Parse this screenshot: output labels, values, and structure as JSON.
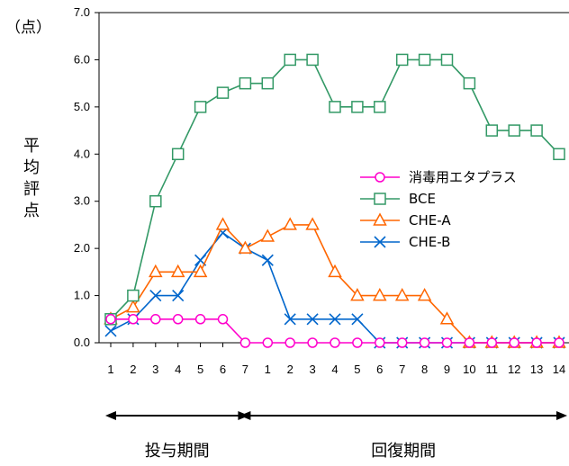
{
  "chart_data": {
    "type": "line",
    "y_unit": "（点）",
    "ylabel": "平均評点",
    "ylim": [
      0,
      7
    ],
    "y_ticks": [
      "0.0",
      "1.0",
      "2.0",
      "3.0",
      "4.0",
      "5.0",
      "6.0",
      "7.0"
    ],
    "categories": [
      "1",
      "2",
      "3",
      "4",
      "5",
      "6",
      "7",
      "1",
      "2",
      "3",
      "4",
      "5",
      "6",
      "7",
      "8",
      "9",
      "10",
      "11",
      "12",
      "13",
      "14"
    ],
    "grid": false,
    "legend_position": "right-middle",
    "series": [
      {
        "name": "消毒用エタプラス",
        "color": "#ff00cc",
        "marker": "circle",
        "values": [
          0.5,
          0.5,
          0.5,
          0.5,
          0.5,
          0.5,
          0,
          0,
          0,
          0,
          0,
          0,
          0,
          0,
          0,
          0,
          0,
          0,
          0,
          0,
          0
        ]
      },
      {
        "name": "BCE",
        "color": "#339966",
        "marker": "square",
        "values": [
          0.5,
          1,
          3,
          4,
          5,
          5.3,
          5.5,
          5.5,
          6,
          6,
          5,
          5,
          5,
          6,
          6,
          6,
          5.5,
          4.5,
          4.5,
          4.5,
          4
        ]
      },
      {
        "name": "CHE-A",
        "color": "#ff6600",
        "marker": "triangle",
        "values": [
          0.5,
          0.75,
          1.5,
          1.5,
          1.5,
          2.5,
          2,
          2.25,
          2.5,
          2.5,
          1.5,
          1,
          1,
          1,
          1,
          0.5,
          0,
          0,
          0,
          0,
          0
        ]
      },
      {
        "name": "CHE-B",
        "color": "#0066cc",
        "marker": "x",
        "values": [
          0.25,
          0.5,
          1,
          1,
          1.75,
          2.33,
          2,
          1.75,
          0.5,
          0.5,
          0.5,
          0.5,
          0,
          0,
          0,
          0,
          0,
          0,
          0,
          0,
          0
        ]
      }
    ],
    "periods": [
      {
        "label": "投与期間",
        "from_index": 0,
        "to_index": 6
      },
      {
        "label": "回復期間",
        "from_index": 6,
        "to_index": 20
      }
    ]
  }
}
